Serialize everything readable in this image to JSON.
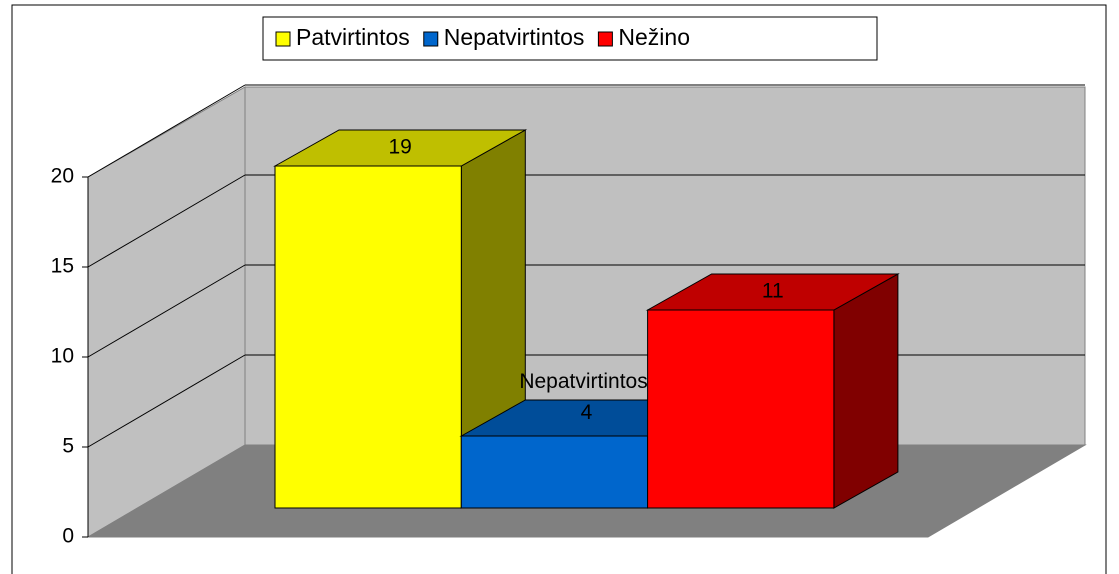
{
  "chart_data": {
    "type": "bar",
    "categories": [
      null
    ],
    "series": [
      {
        "name": "Patvirtintos",
        "color": "#ffff00",
        "values": [
          19
        ]
      },
      {
        "name": "Nepatvirtintos",
        "color": "#0066cc",
        "values": [
          4
        ],
        "value_labels": [
          "Nepatvirtintos; 4"
        ]
      },
      {
        "name": "Nežino",
        "color": "#ff0000",
        "values": [
          11
        ]
      }
    ],
    "ylim": [
      0,
      20
    ],
    "yticks": [
      0,
      5,
      10,
      15,
      20
    ],
    "grid": true,
    "legend": "top"
  }
}
